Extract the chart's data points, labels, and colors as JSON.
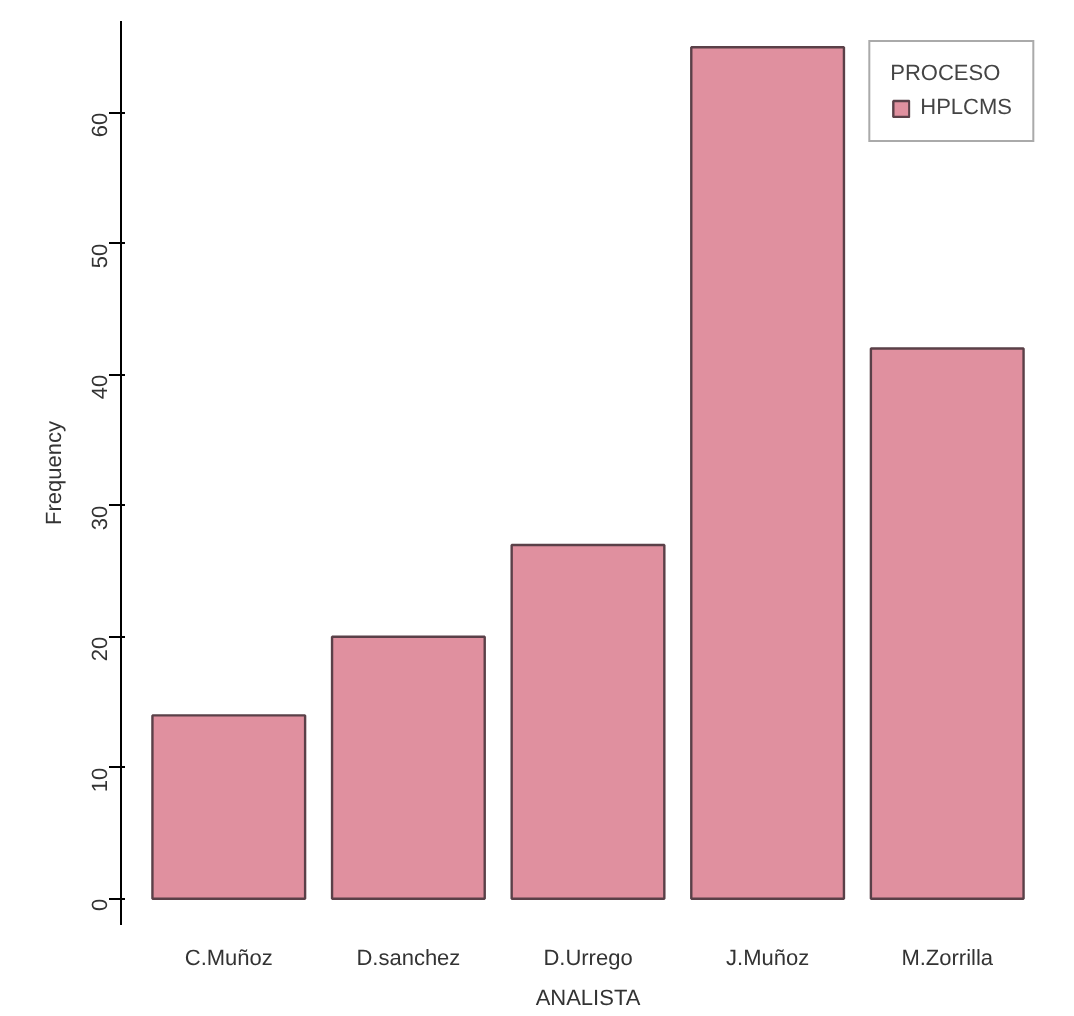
{
  "chart_data": {
    "type": "bar",
    "xlabel": "ANALISTA",
    "ylabel": "Frequency",
    "legend_title": "PROCESO",
    "categories": [
      "C.Muñoz",
      "D.sanchez",
      "D.Urrego",
      "J.Muñoz",
      "M.Zorrilla"
    ],
    "series": [
      {
        "name": "HPLCMS",
        "color": "#e0909f",
        "values": [
          14,
          20,
          27,
          65,
          42
        ]
      }
    ],
    "ylim": [
      -2,
      67
    ],
    "yticks": [
      0,
      10,
      20,
      30,
      40,
      50,
      60
    ],
    "grid": false,
    "legend": "top right"
  }
}
